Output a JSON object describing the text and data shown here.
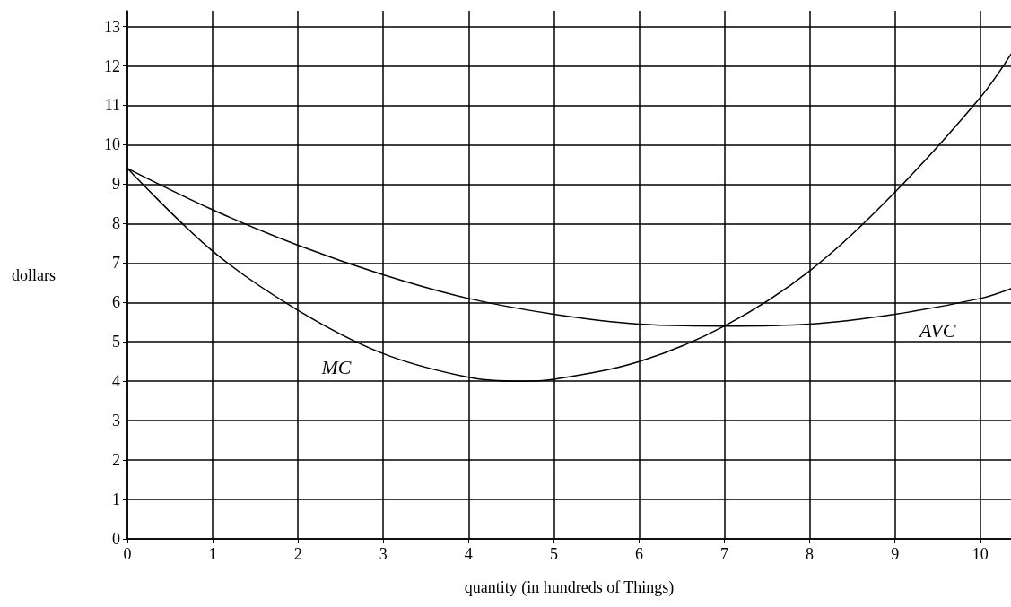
{
  "chart_data": {
    "type": "line",
    "xlabel": "quantity (in hundreds of Things)",
    "ylabel": "dollars",
    "xlim": [
      0,
      10.36
    ],
    "xticks": [
      0,
      1,
      2,
      3,
      4,
      5,
      6,
      7,
      8,
      9,
      10
    ],
    "ylim": [
      0,
      13.4
    ],
    "yticks": [
      0,
      1,
      2,
      3,
      4,
      5,
      6,
      7,
      8,
      9,
      10,
      11,
      12,
      13
    ],
    "grid": true,
    "marker": "none",
    "line_style": "solid",
    "series": [
      {
        "color": "#000000",
        "x": [
          0,
          1,
          2,
          3,
          4,
          4.6,
          5,
          6,
          7,
          8,
          9,
          10,
          10.36
        ],
        "values": [
          9.4,
          7.3,
          5.8,
          4.7,
          4.1,
          4.0,
          4.05,
          4.5,
          5.4,
          6.8,
          8.8,
          11.2,
          12.3
        ]
      },
      {
        "color": "#000000",
        "x": [
          0,
          1,
          2,
          3,
          4,
          5,
          6,
          7,
          8,
          9,
          10,
          10.36
        ],
        "values": [
          9.4,
          8.35,
          7.45,
          6.7,
          6.1,
          5.7,
          5.45,
          5.4,
          5.45,
          5.7,
          6.1,
          6.35
        ]
      }
    ],
    "annotations": [
      {
        "text": "MC",
        "x": 2.45,
        "y": 4.35
      },
      {
        "text": "AVC",
        "x": 9.5,
        "y": 5.3
      }
    ]
  }
}
